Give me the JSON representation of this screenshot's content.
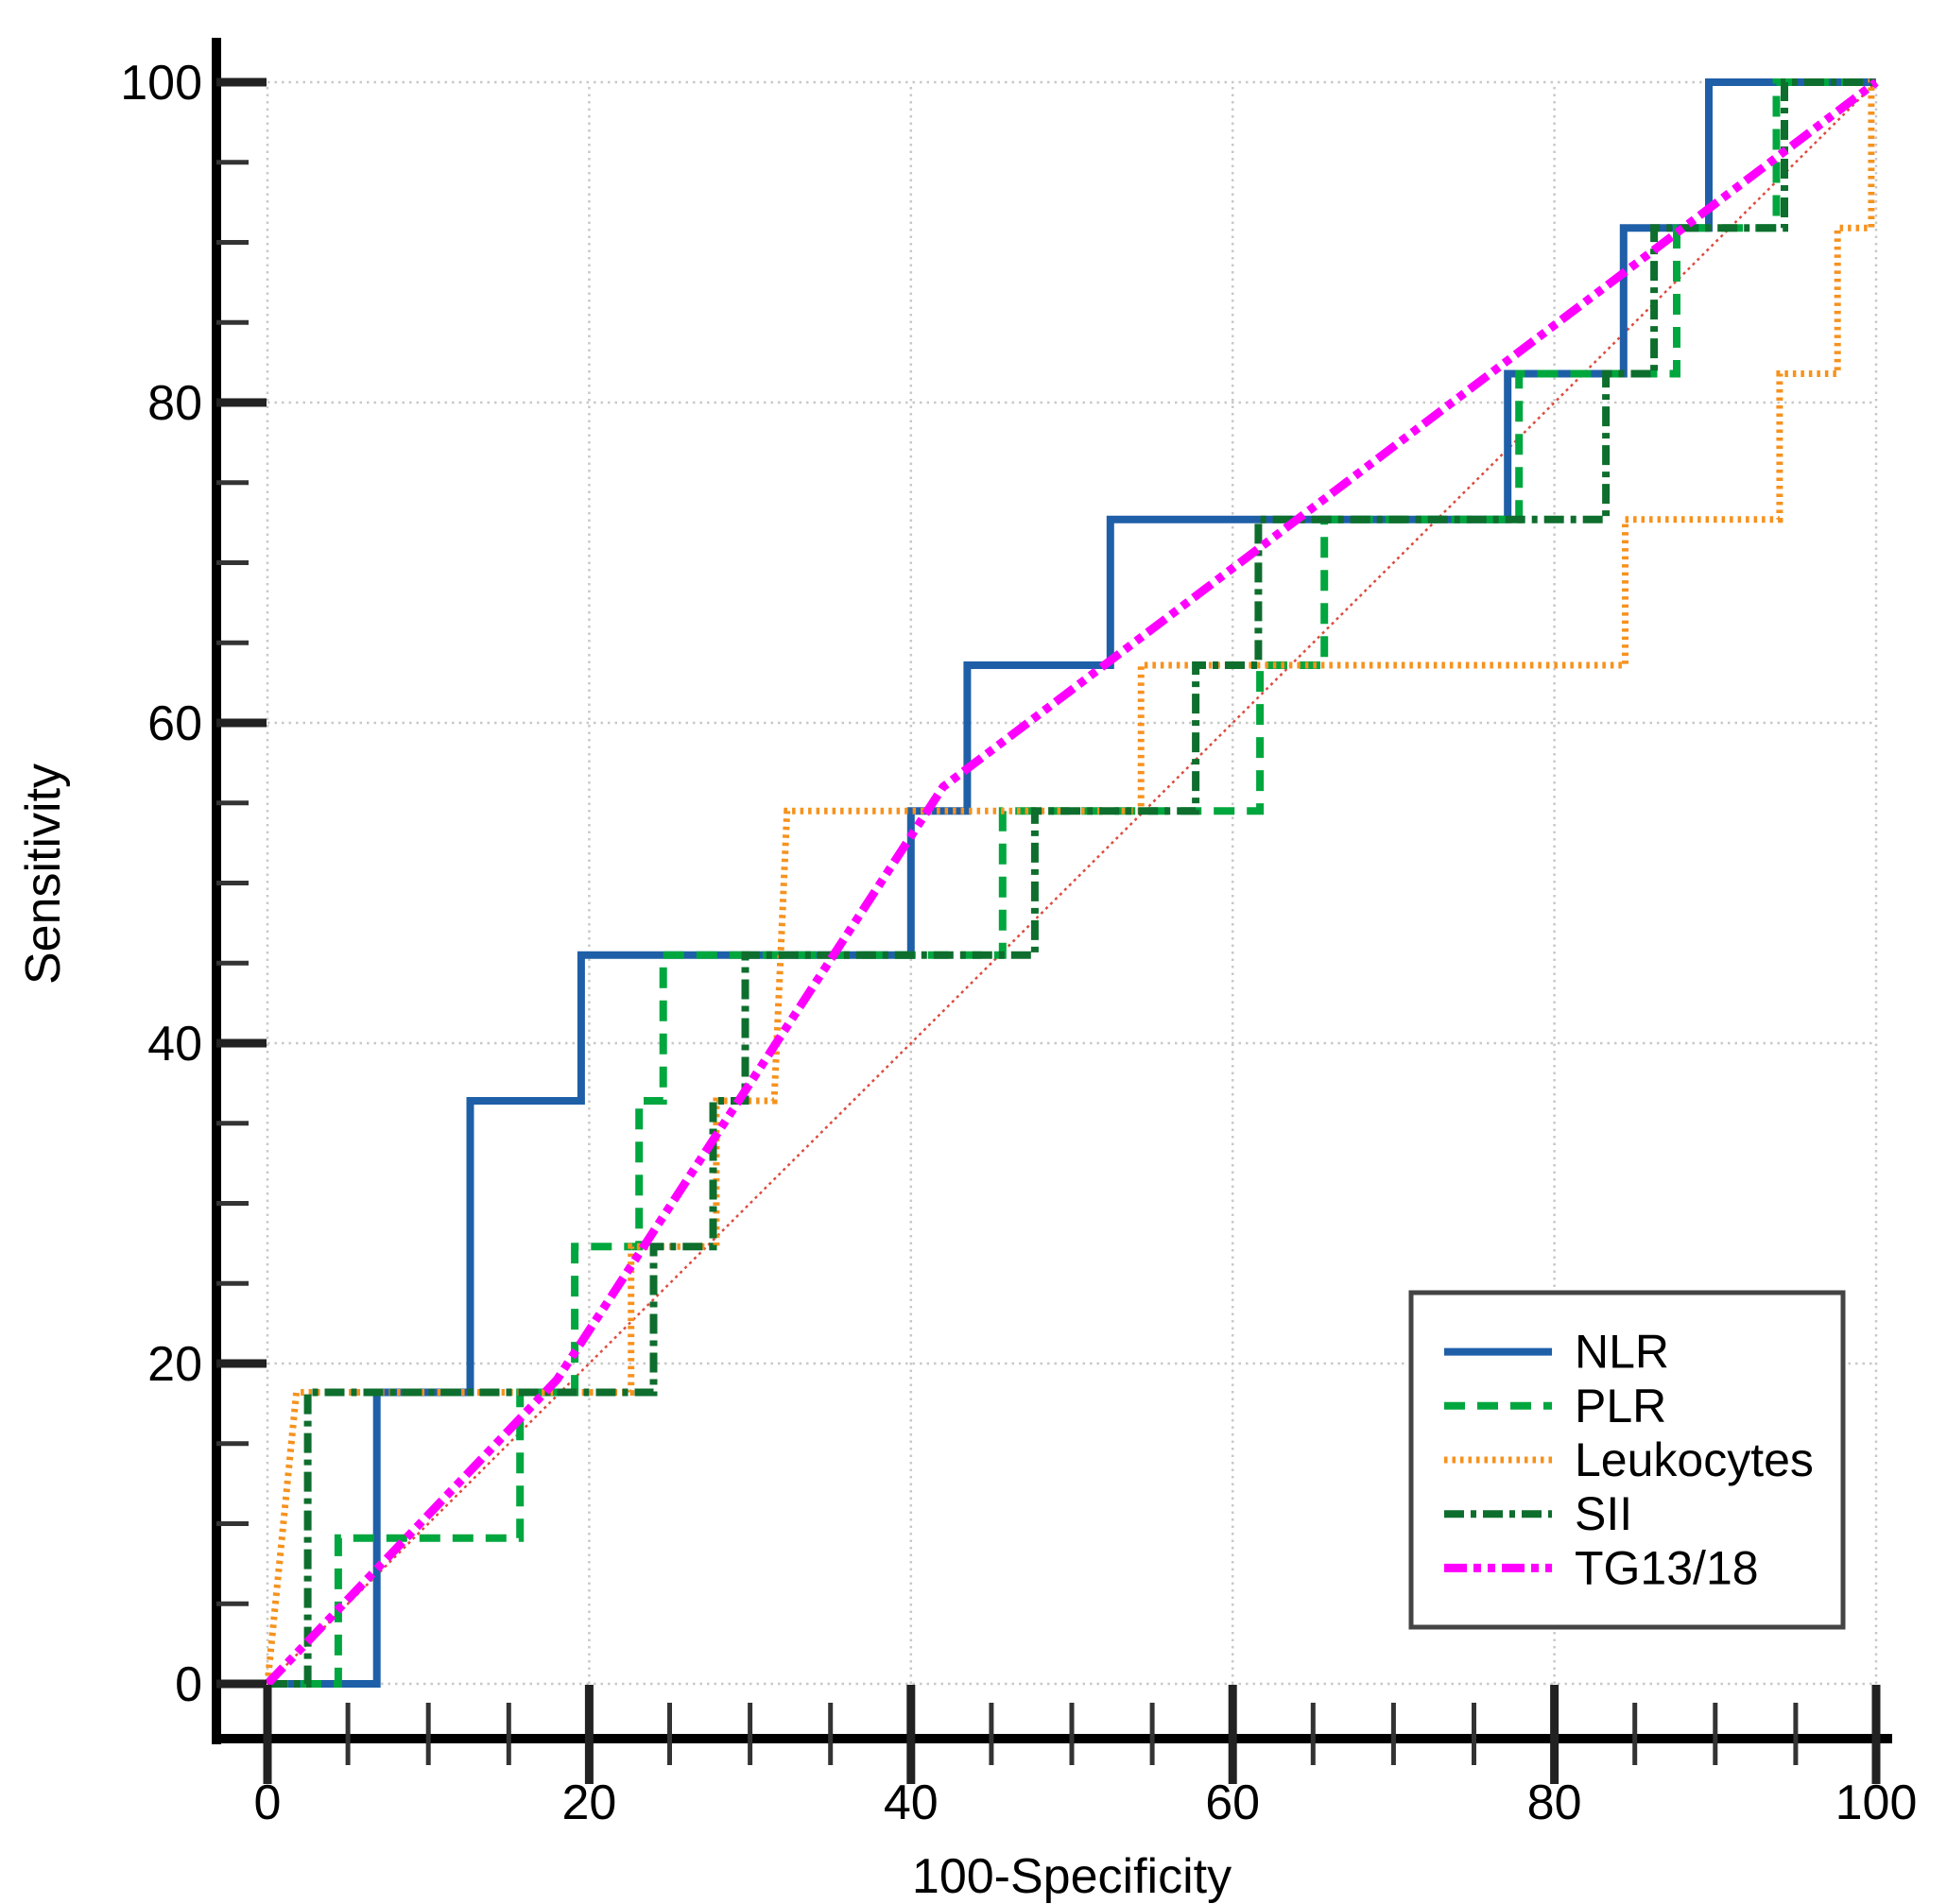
{
  "chart_data": {
    "type": "line",
    "subtype": "roc-curves",
    "title": "",
    "xlabel": "100-Specificity",
    "ylabel": "Sensitivity",
    "xlim": [
      0,
      100
    ],
    "ylim": [
      0,
      100
    ],
    "x_ticks": [
      0,
      20,
      40,
      60,
      80,
      100
    ],
    "y_ticks": [
      0,
      20,
      40,
      60,
      80,
      100
    ],
    "minor_tick_step": 5,
    "grid": "dotted",
    "grid_color": "#c8c8c8",
    "legend_position": "lower-right",
    "series": [
      {
        "name": "NLR",
        "color": "#1E5FA8",
        "style": "solid",
        "width": 8,
        "points": [
          [
            0,
            0
          ],
          [
            6.8,
            0
          ],
          [
            6.8,
            18.2
          ],
          [
            12.6,
            18.2
          ],
          [
            12.6,
            36.4
          ],
          [
            19.5,
            36.4
          ],
          [
            19.5,
            45.5
          ],
          [
            40,
            45.5
          ],
          [
            40,
            54.5
          ],
          [
            43.5,
            54.5
          ],
          [
            43.5,
            63.6
          ],
          [
            52.4,
            63.6
          ],
          [
            52.4,
            72.7
          ],
          [
            77.1,
            72.7
          ],
          [
            77.1,
            81.8
          ],
          [
            84.3,
            81.8
          ],
          [
            84.3,
            90.9
          ],
          [
            89.6,
            90.9
          ],
          [
            89.6,
            100
          ],
          [
            100,
            100
          ]
        ]
      },
      {
        "name": "PLR",
        "color": "#00A63E",
        "style": "dashed",
        "width": 8,
        "points": [
          [
            0,
            0
          ],
          [
            4.4,
            0
          ],
          [
            4.4,
            9.1
          ],
          [
            15.7,
            9.1
          ],
          [
            15.7,
            18.2
          ],
          [
            19.1,
            18.2
          ],
          [
            19.1,
            27.3
          ],
          [
            23.1,
            27.3
          ],
          [
            23.1,
            36.4
          ],
          [
            24.6,
            36.4
          ],
          [
            24.6,
            45.5
          ],
          [
            45.7,
            45.5
          ],
          [
            45.7,
            54.5
          ],
          [
            61.7,
            54.5
          ],
          [
            61.7,
            63.6
          ],
          [
            65.7,
            63.6
          ],
          [
            65.7,
            72.7
          ],
          [
            77.8,
            72.7
          ],
          [
            77.8,
            81.8
          ],
          [
            87.6,
            81.8
          ],
          [
            87.6,
            90.9
          ],
          [
            93.8,
            90.9
          ],
          [
            93.8,
            100
          ],
          [
            100,
            100
          ]
        ]
      },
      {
        "name": "Leukocytes",
        "color": "#F6921E",
        "style": "dotted",
        "width": 7,
        "points": [
          [
            0,
            0
          ],
          [
            1.8,
            18.2
          ],
          [
            22.6,
            18.2
          ],
          [
            22.6,
            27.3
          ],
          [
            27.9,
            27.3
          ],
          [
            27.9,
            36.4
          ],
          [
            31.5,
            36.4
          ],
          [
            32.3,
            54.5
          ],
          [
            54.3,
            54.5
          ],
          [
            54.3,
            63.6
          ],
          [
            84.4,
            63.6
          ],
          [
            84.4,
            72.7
          ],
          [
            94,
            72.7
          ],
          [
            94,
            81.8
          ],
          [
            97.6,
            81.8
          ],
          [
            97.6,
            90.9
          ],
          [
            99.7,
            90.9
          ],
          [
            99.7,
            100
          ],
          [
            100,
            100
          ]
        ]
      },
      {
        "name": "SII",
        "color": "#0E6E2D",
        "style": "dash-dot",
        "width": 8,
        "points": [
          [
            0,
            0
          ],
          [
            2.5,
            0
          ],
          [
            2.5,
            18.2
          ],
          [
            24,
            18.2
          ],
          [
            24,
            27.3
          ],
          [
            27.7,
            27.3
          ],
          [
            27.7,
            36.4
          ],
          [
            29.7,
            36.4
          ],
          [
            29.7,
            45.5
          ],
          [
            47.7,
            45.5
          ],
          [
            47.7,
            54.5
          ],
          [
            57.7,
            54.5
          ],
          [
            57.7,
            63.6
          ],
          [
            61.6,
            63.6
          ],
          [
            61.6,
            72.7
          ],
          [
            83.2,
            72.7
          ],
          [
            83.2,
            81.8
          ],
          [
            86.2,
            81.8
          ],
          [
            86.2,
            90.9
          ],
          [
            94.3,
            90.9
          ],
          [
            94.3,
            100
          ],
          [
            100,
            100
          ]
        ]
      },
      {
        "name": "TG13/18",
        "color": "#FF00FF",
        "style": "dash-dot-dot",
        "width": 9,
        "points": [
          [
            0,
            0
          ],
          [
            18,
            19
          ],
          [
            42,
            56
          ],
          [
            100,
            100
          ]
        ]
      }
    ],
    "reference_line": {
      "name": "chance-diagonal",
      "color": "#DD4B3E",
      "style": "fine-dotted",
      "width": 2.5,
      "points": [
        [
          0,
          0
        ],
        [
          100,
          100
        ]
      ]
    }
  },
  "legend": {
    "entries": [
      "NLR",
      "PLR",
      "Leukocytes",
      "SII",
      "TG13/18"
    ],
    "border_color": "#444444",
    "text_color": "#000000"
  },
  "axis": {
    "color": "#000000",
    "tick_label_color": "#000000"
  }
}
